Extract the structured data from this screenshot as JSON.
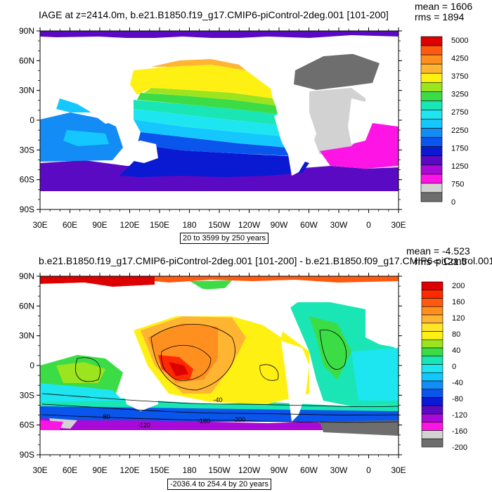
{
  "chart_data": [
    {
      "type": "heatmap",
      "title": "IAGE at z=2414.0m, b.e21.B1850.f19_g17.CMIP6-piControl-2deg.001 [101-200]",
      "mean_text": "mean = 1606",
      "rms_text": "rms = 1894",
      "x_tick_labels": [
        "30E",
        "60E",
        "90E",
        "120E",
        "150E",
        "180",
        "150W",
        "120W",
        "90W",
        "60W",
        "30W",
        "0",
        "30E"
      ],
      "y_tick_labels": [
        "90N",
        "60N",
        "30N",
        "0",
        "30S",
        "60S",
        "90S"
      ],
      "x_range_deg": [
        30,
        390
      ],
      "y_range_deg": [
        -90,
        90
      ],
      "range_text": "20 to 3599 by 250 years",
      "colorbar_labels": [
        "5000",
        "4250",
        "3750",
        "3250",
        "2750",
        "2250",
        "1750",
        "1250",
        "750",
        "0"
      ],
      "colorbar_colors": [
        "#dd0000",
        "#ff5a10",
        "#ff9020",
        "#ffb432",
        "#fff014",
        "#9be41e",
        "#3cdc46",
        "#19e6b4",
        "#1ee6f0",
        "#14c8ff",
        "#148cf5",
        "#0a55eb",
        "#0a19d2",
        "#5a0ac3",
        "#aa0ad7",
        "#ff14e6",
        "#d2d2d2",
        "#6e6e6e"
      ],
      "contour_labels": []
    },
    {
      "type": "heatmap",
      "title": "b.e21.B1850.f19_g17.CMIP6-piControl-2deg.001 [101-200] - b.e21.B1850.f09_g17.CMIP6-piControl.001",
      "mean_text": "mean = -4.523",
      "rms_text": "rms = 121.5",
      "x_tick_labels": [
        "30E",
        "60E",
        "90E",
        "120E",
        "150E",
        "180",
        "150W",
        "120W",
        "90W",
        "60W",
        "30W",
        "0",
        "30E"
      ],
      "y_tick_labels": [
        "90N",
        "60N",
        "30N",
        "0",
        "30S",
        "60S",
        "90S"
      ],
      "x_range_deg": [
        30,
        390
      ],
      "y_range_deg": [
        -90,
        90
      ],
      "range_text": "-2036.4 to 254.4 by 20 years",
      "colorbar_labels": [
        "200",
        "160",
        "120",
        "80",
        "40",
        "0",
        "-40",
        "-80",
        "-120",
        "-160",
        "-200"
      ],
      "colorbar_colors": [
        "#dd0000",
        "#ff2a00",
        "#ff5a10",
        "#ff9020",
        "#ffb432",
        "#ffe628",
        "#fff014",
        "#9be41e",
        "#3cdc46",
        "#19e6b4",
        "#1ee6f0",
        "#14c8ff",
        "#148cf5",
        "#0a55eb",
        "#0a19d2",
        "#5a0ac3",
        "#aa0ad7",
        "#ff14e6",
        "#d2d2d2",
        "#6e6e6e"
      ],
      "contour_labels": [
        "-40",
        "-80",
        "-120",
        "-160",
        "-200"
      ]
    }
  ]
}
